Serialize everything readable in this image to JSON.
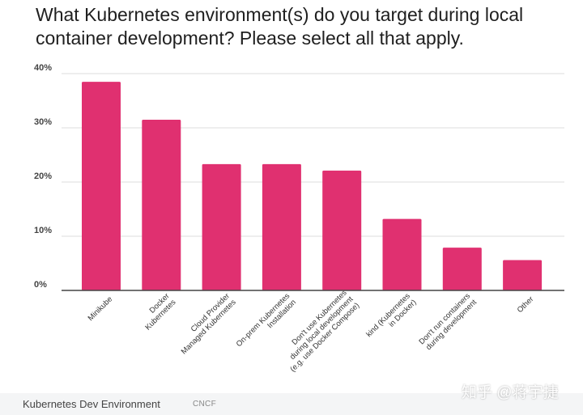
{
  "chart_data": {
    "type": "bar",
    "title": "What Kubernetes environment(s) do you target during local container development? Please select all that apply.",
    "xlabel": "",
    "ylabel": "",
    "categories": [
      [
        "Minikube"
      ],
      [
        "Docker",
        "Kubernetes"
      ],
      [
        "Cloud Provider",
        "Managed Kubernetes"
      ],
      [
        "On-prem Kubernetes",
        "Installation"
      ],
      [
        "Don't use Kubernetes",
        "during local development",
        "(e.g. use Docker Compose)"
      ],
      [
        "kind (Kubernetes",
        "in Docker)"
      ],
      [
        "Don't run containers",
        "during development"
      ],
      [
        "Other"
      ]
    ],
    "values": [
      38.5,
      31.5,
      23.3,
      23.3,
      22.1,
      13.2,
      7.9,
      5.6
    ],
    "ylim": [
      0,
      40
    ],
    "yticks": [
      0,
      10,
      20,
      30,
      40
    ],
    "ytick_labels": [
      "0%",
      "10%",
      "20%",
      "30%",
      "40%"
    ],
    "grid": true,
    "bar_color": "#e03070"
  },
  "caption": {
    "title": "Kubernetes Dev Environment",
    "source": "CNCF"
  },
  "watermark": "知乎 @蒋宇捷"
}
